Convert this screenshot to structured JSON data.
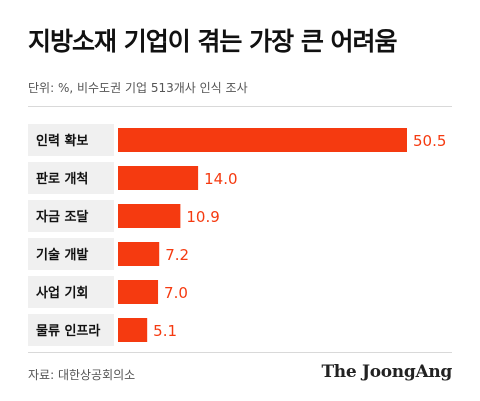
{
  "header": {
    "title": "지방소재 기업이 겪는 가장 큰 어려움",
    "unit_note": "단위: %, 비수도권 기업 513개사 인식 조사"
  },
  "footer": {
    "source": "자료: 대한상공회의소",
    "brand": "The JoongAng"
  },
  "colors": {
    "bar": "#f53a10",
    "value_text": "#f53a10",
    "label_box": "#f0f0f0"
  },
  "chart_data": {
    "type": "bar",
    "orientation": "horizontal",
    "categories": [
      "인력 확보",
      "판로 개척",
      "자금 조달",
      "기술 개발",
      "사업 기회",
      "물류 인프라"
    ],
    "values": [
      50.5,
      14.0,
      10.9,
      7.2,
      7.0,
      5.1
    ],
    "value_labels": [
      "50.5",
      "14.0",
      "10.9",
      "7.2",
      "7.0",
      "5.1"
    ],
    "xlim": [
      0,
      50.5
    ],
    "grid": false,
    "legend": "none"
  }
}
